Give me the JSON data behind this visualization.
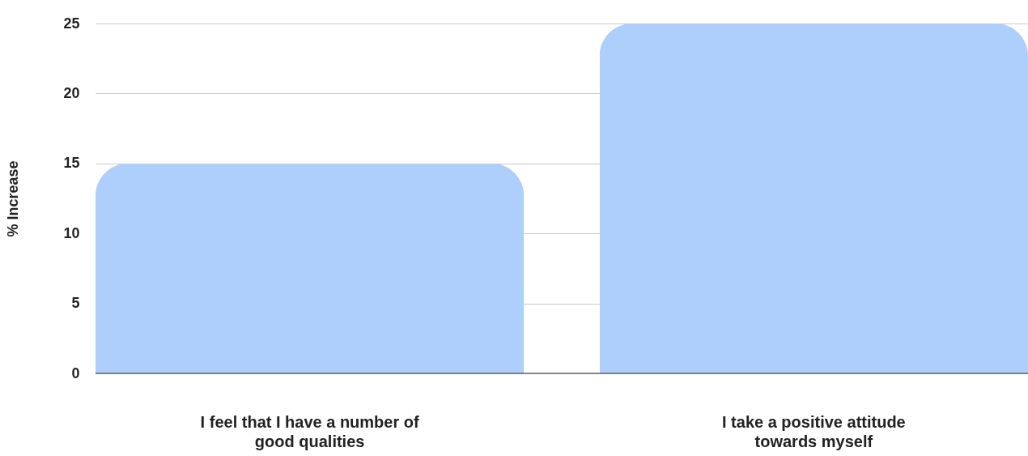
{
  "chart_data": {
    "type": "bar",
    "ylabel": "% Increase",
    "categories": [
      "I feel that I have a number of good qualities",
      "I take a positive attitude towards myself"
    ],
    "values": [
      15,
      25
    ],
    "color": "#aecffc",
    "ylim": [
      0,
      25
    ],
    "yticks": [
      0,
      5,
      10,
      15,
      20,
      25
    ],
    "grid": "y"
  }
}
